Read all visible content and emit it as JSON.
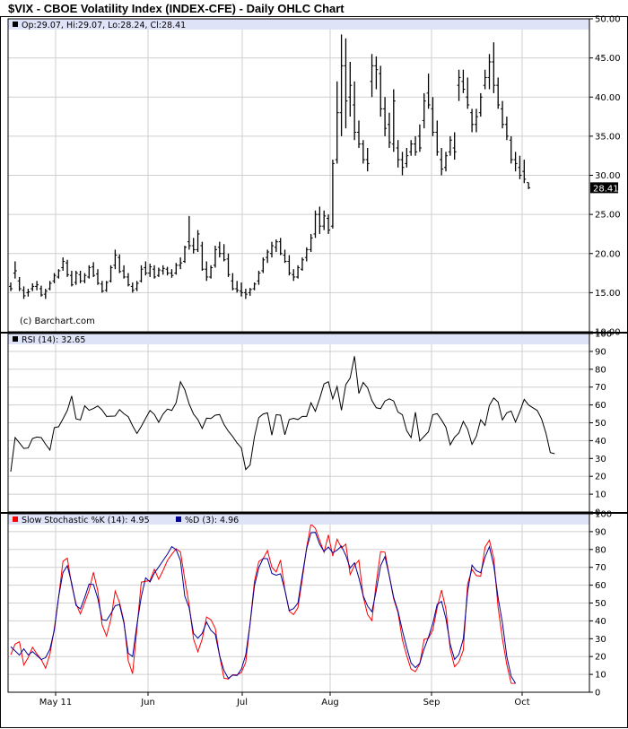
{
  "title": "$VIX - CBOE Volatility Index (INDEX-CFE) - Daily OHLC Chart",
  "colors": {
    "price": "#000000",
    "k": "#ff0000",
    "d": "#000099",
    "legend_bg": "#dfe3f8",
    "grid": "#cfcfcf",
    "last_bg": "#000000"
  },
  "chart_data": [
    {
      "type": "ohlc",
      "legend": "Op:29.07, Hi:29.07, Lo:28.24, Cl:28.41",
      "watermark": "(c) Barchart.com",
      "last_value_label": "28.41",
      "ylim": [
        10,
        50
      ],
      "y_ticks": [
        "10.00",
        "15.00",
        "20.00",
        "25.00",
        "30.00",
        "35.00",
        "40.00",
        "45.00",
        "50.00"
      ],
      "x_ticks": [
        "May 11",
        "Jun",
        "Jul",
        "Aug",
        "Sep",
        "Oct"
      ],
      "grid": true,
      "ohlc": [
        [
          15.8,
          16.3,
          15.2,
          15.5
        ],
        [
          17.5,
          19.0,
          16.8,
          17.8
        ],
        [
          16.5,
          17.0,
          15.2,
          15.5
        ],
        [
          15.3,
          15.8,
          14.2,
          14.6
        ],
        [
          15.0,
          15.5,
          14.5,
          15.1
        ],
        [
          15.5,
          16.2,
          15.2,
          15.8
        ],
        [
          15.8,
          16.5,
          15.3,
          16.0
        ],
        [
          15.5,
          15.9,
          14.5,
          14.7
        ],
        [
          14.8,
          15.5,
          14.2,
          15.2
        ],
        [
          15.5,
          16.5,
          15.3,
          16.2
        ],
        [
          16.5,
          17.5,
          16.2,
          17.2
        ],
        [
          17.0,
          18.0,
          16.8,
          17.8
        ],
        [
          18.2,
          19.5,
          17.8,
          19.0
        ],
        [
          18.8,
          19.2,
          17.0,
          17.3
        ],
        [
          17.2,
          17.8,
          15.8,
          16.0
        ],
        [
          16.3,
          17.8,
          16.0,
          17.5
        ],
        [
          17.3,
          17.8,
          16.2,
          16.5
        ],
        [
          16.5,
          17.5,
          16.2,
          17.2
        ],
        [
          17.0,
          18.5,
          16.8,
          18.2
        ],
        [
          18.3,
          18.9,
          17.0,
          17.2
        ],
        [
          17.4,
          18.0,
          16.0,
          16.2
        ],
        [
          16.1,
          16.5,
          15.0,
          15.2
        ],
        [
          15.3,
          16.5,
          15.1,
          16.3
        ],
        [
          16.5,
          18.5,
          16.3,
          18.2
        ],
        [
          18.5,
          20.5,
          18.0,
          19.8
        ],
        [
          19.5,
          19.9,
          17.5,
          17.7
        ],
        [
          17.8,
          18.5,
          16.8,
          17.0
        ],
        [
          17.0,
          17.5,
          15.8,
          16.0
        ],
        [
          15.8,
          16.3,
          15.0,
          15.3
        ],
        [
          15.5,
          16.5,
          15.2,
          16.2
        ],
        [
          16.5,
          18.5,
          16.3,
          18.0
        ],
        [
          18.2,
          19.0,
          17.2,
          17.5
        ],
        [
          17.5,
          18.7,
          17.0,
          18.3
        ],
        [
          18.0,
          18.5,
          16.8,
          17.0
        ],
        [
          17.2,
          18.2,
          17.0,
          17.9
        ],
        [
          17.8,
          18.5,
          17.3,
          18.1
        ],
        [
          18.0,
          18.3,
          17.2,
          17.5
        ],
        [
          17.5,
          18.0,
          16.9,
          17.2
        ],
        [
          17.5,
          18.8,
          17.3,
          18.5
        ],
        [
          18.5,
          19.5,
          18.0,
          18.8
        ],
        [
          19.0,
          21.0,
          18.8,
          20.8
        ],
        [
          21.5,
          24.8,
          20.5,
          21.0
        ],
        [
          21.0,
          22.0,
          20.0,
          20.5
        ],
        [
          20.5,
          23.0,
          20.2,
          22.5
        ],
        [
          21.0,
          21.5,
          17.8,
          18.0
        ],
        [
          18.0,
          19.0,
          16.5,
          17.0
        ],
        [
          17.0,
          18.5,
          16.8,
          18.2
        ],
        [
          18.5,
          21.0,
          18.2,
          20.5
        ],
        [
          20.8,
          21.5,
          19.5,
          20.0
        ],
        [
          20.0,
          21.2,
          19.0,
          19.2
        ],
        [
          19.3,
          20.0,
          17.0,
          17.3
        ],
        [
          16.5,
          17.5,
          15.3,
          15.5
        ],
        [
          15.5,
          16.5,
          15.0,
          15.3
        ],
        [
          15.2,
          16.3,
          14.5,
          15.0
        ],
        [
          15.0,
          15.5,
          14.2,
          14.8
        ],
        [
          15.0,
          15.6,
          14.6,
          15.4
        ],
        [
          15.5,
          16.3,
          15.3,
          16.1
        ],
        [
          16.5,
          17.8,
          16.0,
          17.5
        ],
        [
          17.8,
          19.5,
          17.5,
          19.2
        ],
        [
          19.5,
          20.5,
          18.8,
          20.2
        ],
        [
          20.0,
          21.5,
          19.5,
          21.0
        ],
        [
          20.8,
          21.8,
          20.2,
          21.5
        ],
        [
          21.5,
          22.0,
          19.8,
          20.0
        ],
        [
          19.8,
          20.5,
          18.8,
          19.0
        ],
        [
          19.0,
          19.8,
          17.2,
          17.5
        ],
        [
          17.3,
          18.0,
          16.5,
          17.0
        ],
        [
          17.0,
          18.5,
          16.8,
          18.2
        ],
        [
          18.0,
          19.5,
          17.8,
          19.2
        ],
        [
          19.5,
          20.8,
          19.0,
          20.5
        ],
        [
          20.5,
          22.5,
          20.2,
          22.0
        ],
        [
          22.5,
          25.5,
          22.0,
          25.0
        ],
        [
          25.0,
          26.0,
          22.5,
          23.5
        ],
        [
          23.5,
          25.5,
          23.0,
          24.8
        ],
        [
          24.5,
          25.0,
          22.5,
          23.0
        ],
        [
          23.5,
          32.0,
          23.2,
          31.5
        ],
        [
          32.0,
          42.0,
          31.5,
          38.0
        ],
        [
          38.0,
          48.0,
          35.0,
          44.0
        ],
        [
          44.0,
          47.5,
          36.0,
          39.5
        ],
        [
          40.0,
          44.5,
          37.5,
          41.5
        ],
        [
          39.0,
          42.0,
          34.5,
          35.5
        ],
        [
          35.5,
          37.0,
          33.5,
          34.0
        ],
        [
          34.0,
          34.5,
          31.5,
          32.0
        ],
        [
          32.0,
          33.5,
          30.5,
          31.5
        ],
        [
          42.0,
          45.5,
          40.0,
          44.0
        ],
        [
          44.0,
          45.2,
          41.0,
          43.5
        ],
        [
          43.0,
          44.0,
          37.5,
          38.5
        ],
        [
          38.5,
          40.0,
          35.0,
          36.0
        ],
        [
          36.5,
          38.0,
          33.5,
          34.2
        ],
        [
          34.0,
          41.0,
          33.0,
          39.5
        ],
        [
          33.5,
          34.5,
          31.0,
          32.0
        ],
        [
          32.0,
          33.0,
          30.0,
          31.0
        ],
        [
          31.5,
          33.5,
          31.0,
          32.5
        ],
        [
          33.0,
          34.5,
          32.5,
          34.0
        ],
        [
          34.0,
          35.0,
          32.5,
          33.0
        ],
        [
          35.0,
          36.5,
          33.0,
          33.5
        ],
        [
          37.0,
          40.5,
          36.0,
          39.5
        ],
        [
          40.5,
          43.0,
          38.5,
          39.0
        ],
        [
          38.5,
          40.0,
          35.0,
          35.5
        ],
        [
          35.5,
          37.0,
          32.5,
          33.0
        ],
        [
          32.0,
          33.5,
          30.0,
          30.8
        ],
        [
          31.0,
          33.0,
          30.5,
          32.5
        ],
        [
          33.0,
          35.0,
          32.5,
          34.5
        ],
        [
          33.5,
          35.5,
          32.0,
          33.0
        ],
        [
          41.5,
          43.5,
          39.5,
          42.5
        ],
        [
          42.0,
          43.5,
          40.5,
          41.0
        ],
        [
          40.0,
          42.5,
          38.5,
          39.0
        ],
        [
          38.0,
          38.5,
          35.5,
          36.5
        ],
        [
          36.5,
          38.5,
          35.5,
          37.5
        ],
        [
          38.0,
          40.5,
          37.5,
          40.0
        ],
        [
          41.5,
          43.5,
          41.0,
          42.5
        ],
        [
          42.5,
          45.5,
          41.0,
          44.5
        ],
        [
          44.5,
          47.0,
          40.5,
          41.5
        ],
        [
          41.5,
          42.5,
          38.5,
          39.0
        ],
        [
          38.5,
          39.5,
          36.0,
          36.5
        ],
        [
          36.5,
          37.5,
          34.5,
          35.0
        ],
        [
          34.5,
          35.0,
          31.5,
          32.0
        ],
        [
          32.0,
          33.0,
          30.5,
          31.5
        ],
        [
          31.0,
          32.5,
          29.5,
          30.0
        ],
        [
          30.5,
          32.0,
          29.0,
          29.5
        ],
        [
          29.07,
          29.07,
          28.24,
          28.41
        ]
      ]
    },
    {
      "type": "line",
      "legend": "RSI (14): 32.65",
      "ylim": [
        0,
        100
      ],
      "y_ticks": [
        "0",
        "10",
        "20",
        "30",
        "40",
        "50",
        "60",
        "70",
        "80",
        "90",
        "100"
      ],
      "values": [
        22.6,
        41.7,
        38.7,
        35.6,
        35.9,
        41.2,
        42.0,
        41.7,
        38.0,
        34.7,
        47.3,
        47.8,
        52.2,
        56.9,
        65.0,
        52.2,
        51.6,
        59.5,
        57.0,
        58.0,
        59.4,
        57.1,
        53.6,
        53.7,
        53.8,
        57.4,
        55.1,
        53.4,
        48.3,
        44.0,
        48.0,
        52.5,
        56.9,
        54.7,
        50.3,
        54.9,
        57.7,
        56.9,
        61.2,
        73.0,
        68.5,
        60.5,
        54.9,
        51.8,
        46.8,
        52.6,
        52.4,
        54.3,
        54.6,
        49.1,
        45.3,
        42.3,
        38.7,
        35.9,
        23.8,
        26.4,
        42.1,
        52.9,
        54.9,
        55.6,
        43.1,
        54.5,
        54.3,
        43.3,
        51.8,
        52.5,
        51.8,
        53.6,
        53.6,
        61.2,
        56.4,
        63.6,
        71.8,
        73.0,
        63.4,
        70.3,
        57.0,
        71.4,
        75.1,
        87.3,
        66.4,
        72.6,
        69.6,
        62.5,
        58.4,
        57.9,
        62.2,
        63.4,
        62.2,
        56.0,
        54.5,
        45.6,
        41.7,
        55.9,
        39.8,
        42.4,
        45.0,
        54.5,
        55.1,
        51.6,
        47.5,
        37.6,
        41.9,
        44.3,
        50.8,
        46.4,
        37.9,
        42.4,
        51.7,
        48.5,
        59.8,
        63.9,
        61.6,
        51.6,
        55.6,
        56.6,
        50.4,
        56.3,
        63.1,
        60.0,
        58.4,
        56.9,
        52.1,
        44.2,
        33.3,
        32.65
      ]
    },
    {
      "type": "line",
      "legend_k": "Slow Stochastic %K (14): 4.95",
      "legend_d": "%D (3): 4.96",
      "ylim": [
        0,
        100
      ],
      "y_ticks": [
        "0",
        "10",
        "20",
        "30",
        "40",
        "50",
        "60",
        "70",
        "80",
        "90",
        "100"
      ],
      "series": [
        {
          "name": "Slow Stochastic %K (14)",
          "values": [
            21.0,
            27.0,
            28.3,
            15.2,
            19.4,
            25.2,
            21.5,
            18.4,
            13.5,
            21.3,
            35.6,
            53.2,
            73.4,
            75.1,
            60.1,
            49.6,
            43.9,
            50.3,
            57.0,
            67.2,
            56.8,
            37.7,
            31.5,
            40.8,
            56.7,
            50.3,
            39.7,
            17.7,
            10.4,
            35.9,
            61.7,
            62.2,
            62.6,
            68.9,
            63.3,
            68.2,
            73.8,
            77.3,
            80.4,
            78.6,
            63.2,
            48.9,
            29.8,
            22.7,
            29.8,
            42.2,
            40.6,
            35.8,
            20.4,
            7.9,
            7.4,
            9.8,
            9.7,
            11.1,
            16.7,
            38.6,
            62.0,
            73.3,
            74.9,
            79.4,
            70.1,
            67.4,
            74.1,
            57.3,
            45.4,
            43.5,
            47.4,
            63.4,
            81.2,
            94.3,
            91.9,
            85.0,
            78.4,
            88.2,
            76.3,
            85.8,
            80.9,
            83.0,
            66.0,
            71.0,
            74.0,
            53.6,
            43.6,
            40.2,
            61.4,
            78.8,
            78.5,
            65.2,
            52.3,
            44.6,
            29.4,
            20.5,
            12.9,
            11.5,
            15.9,
            29.7,
            30.3,
            34.8,
            47.4,
            57.2,
            46.6,
            24.0,
            14.3,
            17.0,
            23.5,
            60.7,
            68.8,
            65.4,
            65.0,
            81.3,
            85.2,
            75.1,
            47.5,
            29.9,
            15.5,
            5.0,
            4.95
          ]
        },
        {
          "name": "%D (3)",
          "values": [
            25.5,
            23.2,
            20.8,
            24.3,
            20.9,
            22.8,
            20.6,
            18.3,
            19.4,
            24.1,
            34.6,
            53.5,
            67.1,
            70.9,
            61.1,
            48.7,
            46.7,
            53.1,
            60.6,
            60.4,
            52.6,
            40.7,
            40.2,
            44.0,
            48.5,
            49.1,
            38.9,
            21.8,
            20.0,
            37.9,
            53.6,
            64.1,
            61.8,
            66.8,
            70.2,
            73.8,
            77.4,
            81.6,
            79.9,
            73.8,
            53.8,
            47.3,
            33.0,
            30.3,
            33.0,
            39.3,
            34.7,
            32.4,
            20.5,
            12.2,
            7.8,
            9.6,
            9.4,
            12.9,
            20.9,
            38.4,
            59.6,
            69.8,
            75.0,
            74.8,
            66.6,
            65.6,
            66.4,
            57.2,
            45.8,
            46.9,
            50.0,
            65.6,
            80.5,
            89.4,
            89.6,
            82.9,
            78.9,
            81.4,
            78.2,
            79.6,
            81.9,
            76.7,
            69.6,
            72.5,
            64.1,
            54.1,
            48.3,
            45.1,
            57.0,
            70.9,
            76.0,
            65.2,
            53.1,
            45.4,
            34.6,
            25.0,
            16.4,
            13.8,
            16.2,
            24.3,
            30.8,
            38.5,
            49.2,
            50.9,
            41.3,
            26.8,
            18.4,
            21.2,
            29.8,
            56.4,
            71.2,
            68.1,
            67.0,
            75.7,
            81.6,
            71.0,
            53.0,
            38.8,
            20.0,
            9.0,
            4.96
          ]
        }
      ]
    }
  ]
}
